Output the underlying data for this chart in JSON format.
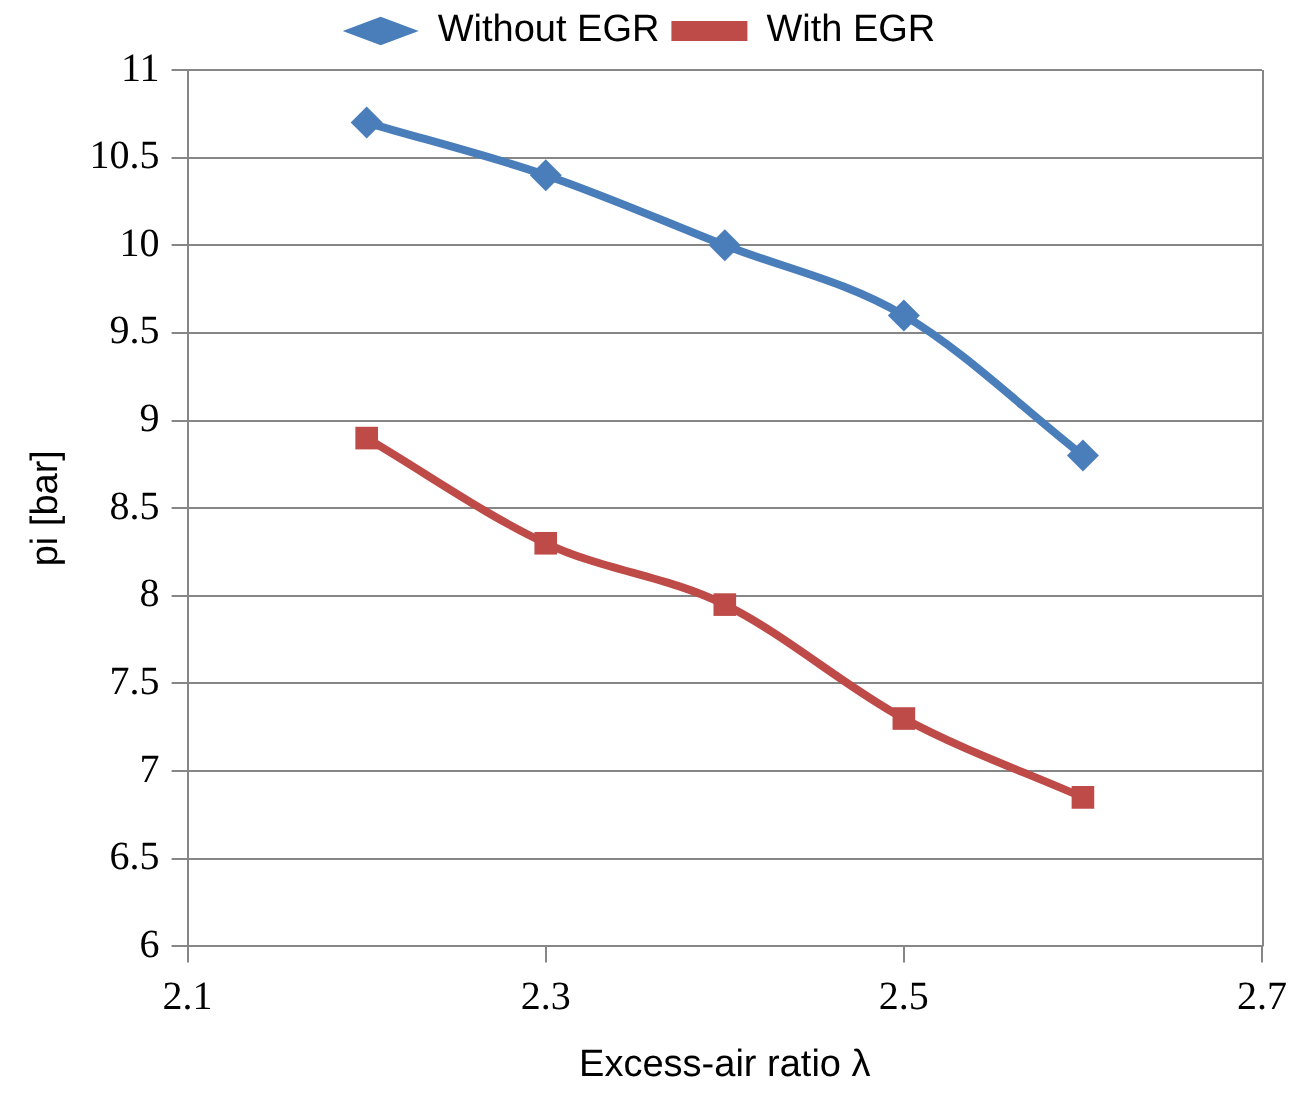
{
  "chart_data": {
    "type": "line",
    "xlabel": "Excess-air ratio λ",
    "ylabel": "pi [bar]",
    "x": [
      2.2,
      2.3,
      2.4,
      2.5,
      2.6
    ],
    "series": [
      {
        "name": "Without EGR",
        "color": "#4a7ebb",
        "marker": "diamond",
        "values": [
          10.7,
          10.4,
          10.0,
          9.6,
          8.8
        ]
      },
      {
        "name": "With EGR",
        "color": "#be4b48",
        "marker": "square",
        "values": [
          8.9,
          8.3,
          7.95,
          7.3,
          6.85
        ]
      }
    ],
    "xlim": [
      2.1,
      2.7
    ],
    "xticks": [
      2.1,
      2.3,
      2.5,
      2.7
    ],
    "ylim": [
      6,
      11
    ],
    "yticks": [
      6,
      6.5,
      7,
      7.5,
      8,
      8.5,
      9,
      9.5,
      10,
      10.5,
      11
    ],
    "grid": "y",
    "legend": "top"
  }
}
